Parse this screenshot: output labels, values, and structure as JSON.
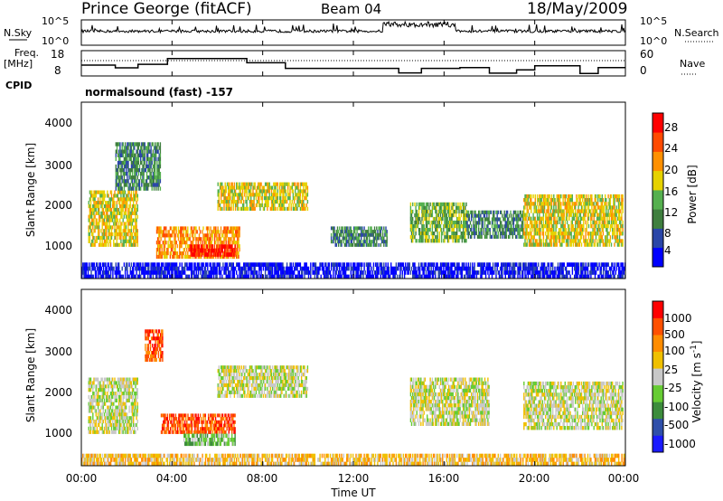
{
  "header": {
    "station": "Prince George (fitACF)",
    "beam": "Beam 04",
    "date": "18/May/2009"
  },
  "left_labels": {
    "nsky": "N.Sky",
    "freq": "Freq.",
    "freq_unit": "[MHz]",
    "cpid": "CPID"
  },
  "right_labels": {
    "nsearch": "N.Search",
    "nave": "Nave"
  },
  "mode_text": "normalsound (fast) -157",
  "colors": {
    "power": [
      "#0000ff",
      "#2a46a8",
      "#3f7f3f",
      "#55b04f",
      "#e6d200",
      "#ff9000",
      "#ff4a00",
      "#ff0000"
    ],
    "velocity": [
      "#1a1aff",
      "#2f4faa",
      "#3c8c3c",
      "#66cc33",
      "#c8c8c8",
      "#f0c000",
      "#ff8c00",
      "#ff5000",
      "#ff0000"
    ]
  },
  "chart_data": [
    {
      "type": "line",
      "panel": "noise",
      "ylabel_left": "N.Sky",
      "ylabel_right": "N.Search",
      "left_ticks": [
        "10^5",
        "10^0"
      ],
      "right_ticks": [
        "10^5",
        "10^0"
      ],
      "x_ticks": [
        "00:00",
        "04:00",
        "08:00",
        "12:00",
        "16:00",
        "20:00",
        "00:00"
      ]
    },
    {
      "type": "line",
      "panel": "freq_nave",
      "ylabel_left": "[MHz]",
      "ylabel_right": "Nave",
      "left_ticks": [
        "18",
        "8"
      ],
      "right_ticks": [
        "60",
        "0"
      ],
      "freq_steps": [
        {
          "t": 0.0,
          "f": 12.3
        },
        {
          "t": 1.5,
          "f": 11.2
        },
        {
          "t": 2.5,
          "f": 12.6
        },
        {
          "t": 3.8,
          "f": 14.9
        },
        {
          "t": 7.3,
          "f": 13.2
        },
        {
          "t": 9.0,
          "f": 11.0
        },
        {
          "t": 12.5,
          "f": 11.0
        },
        {
          "t": 14.0,
          "f": 9.2
        },
        {
          "t": 15.0,
          "f": 11.0
        },
        {
          "t": 16.7,
          "f": 11.3
        },
        {
          "t": 18.0,
          "f": 9.1
        },
        {
          "t": 19.2,
          "f": 10.4
        },
        {
          "t": 20.0,
          "f": 12.0
        },
        {
          "t": 22.0,
          "f": 9.0
        },
        {
          "t": 22.8,
          "f": 11.3
        }
      ],
      "x_ticks": [
        "00:00",
        "04:00",
        "08:00",
        "12:00",
        "16:00",
        "20:00",
        "00:00"
      ]
    },
    {
      "type": "heatmap",
      "panel": "power",
      "ylabel": "Slant Range [km]",
      "y_ticks": [
        "4000",
        "3000",
        "2000",
        "1000"
      ],
      "ylim": [
        200,
        4600
      ],
      "xlim": [
        0,
        24
      ],
      "x_ticks": [
        "00:00",
        "04:00",
        "08:00",
        "12:00",
        "16:00",
        "20:00",
        "00:00"
      ],
      "colorbar_label": "Power [dB]",
      "colorbar_ticks": [
        "28",
        "24",
        "20",
        "16",
        "12",
        "8",
        "4"
      ],
      "regions": [
        {
          "t0": 0.3,
          "t1": 2.5,
          "r0": 1000,
          "r1": 2400,
          "level": 4
        },
        {
          "t0": 1.5,
          "t1": 3.5,
          "r0": 2400,
          "r1": 3600,
          "level": 2
        },
        {
          "t0": 3.3,
          "t1": 7.0,
          "r0": 700,
          "r1": 1500,
          "level": 5
        },
        {
          "t0": 4.8,
          "t1": 6.8,
          "r0": 750,
          "r1": 1050,
          "level": 7
        },
        {
          "t0": 6.0,
          "t1": 10.0,
          "r0": 1900,
          "r1": 2600,
          "level": 4
        },
        {
          "t0": 11.0,
          "t1": 13.5,
          "r0": 1000,
          "r1": 1500,
          "level": 2
        },
        {
          "t0": 14.5,
          "t1": 17.0,
          "r0": 1100,
          "r1": 2100,
          "level": 3
        },
        {
          "t0": 17.0,
          "t1": 19.5,
          "r0": 1200,
          "r1": 1900,
          "level": 2
        },
        {
          "t0": 19.5,
          "t1": 23.9,
          "r0": 1000,
          "r1": 2300,
          "level": 4
        },
        {
          "t0": 0.0,
          "t1": 24.0,
          "r0": 200,
          "r1": 600,
          "level": 0
        }
      ]
    },
    {
      "type": "heatmap",
      "panel": "velocity",
      "ylabel": "Slant Range [km]",
      "y_ticks": [
        "4000",
        "3000",
        "2000",
        "1000"
      ],
      "ylim": [
        200,
        4600
      ],
      "xlim": [
        0,
        24
      ],
      "x_ticks": [
        "00:00",
        "04:00",
        "08:00",
        "12:00",
        "16:00",
        "20:00",
        "00:00"
      ],
      "xlabel": "Time UT",
      "colorbar_label": "Velocity [m s",
      "colorbar_label_sup": "-1",
      "colorbar_label_end": "]",
      "colorbar_ticks": [
        "1000",
        "500",
        "100",
        "25",
        "-25",
        "-100",
        "-500",
        "-1000"
      ],
      "regions": [
        {
          "t0": 0.3,
          "t1": 2.5,
          "r0": 1000,
          "r1": 2400,
          "level": 4
        },
        {
          "t0": 2.8,
          "t1": 3.6,
          "r0": 2800,
          "r1": 3600,
          "level": 7
        },
        {
          "t0": 3.5,
          "t1": 6.8,
          "r0": 1000,
          "r1": 1500,
          "level": 7
        },
        {
          "t0": 4.5,
          "t1": 6.8,
          "r0": 700,
          "r1": 1000,
          "level": 3
        },
        {
          "t0": 6.0,
          "t1": 10.0,
          "r0": 1900,
          "r1": 2700,
          "level": 4
        },
        {
          "t0": 14.5,
          "t1": 18.0,
          "r0": 1200,
          "r1": 2400,
          "level": 4
        },
        {
          "t0": 19.5,
          "t1": 23.9,
          "r0": 1100,
          "r1": 2300,
          "level": 4
        },
        {
          "t0": 0.0,
          "t1": 24.0,
          "r0": 200,
          "r1": 500,
          "level": 5
        }
      ]
    }
  ]
}
